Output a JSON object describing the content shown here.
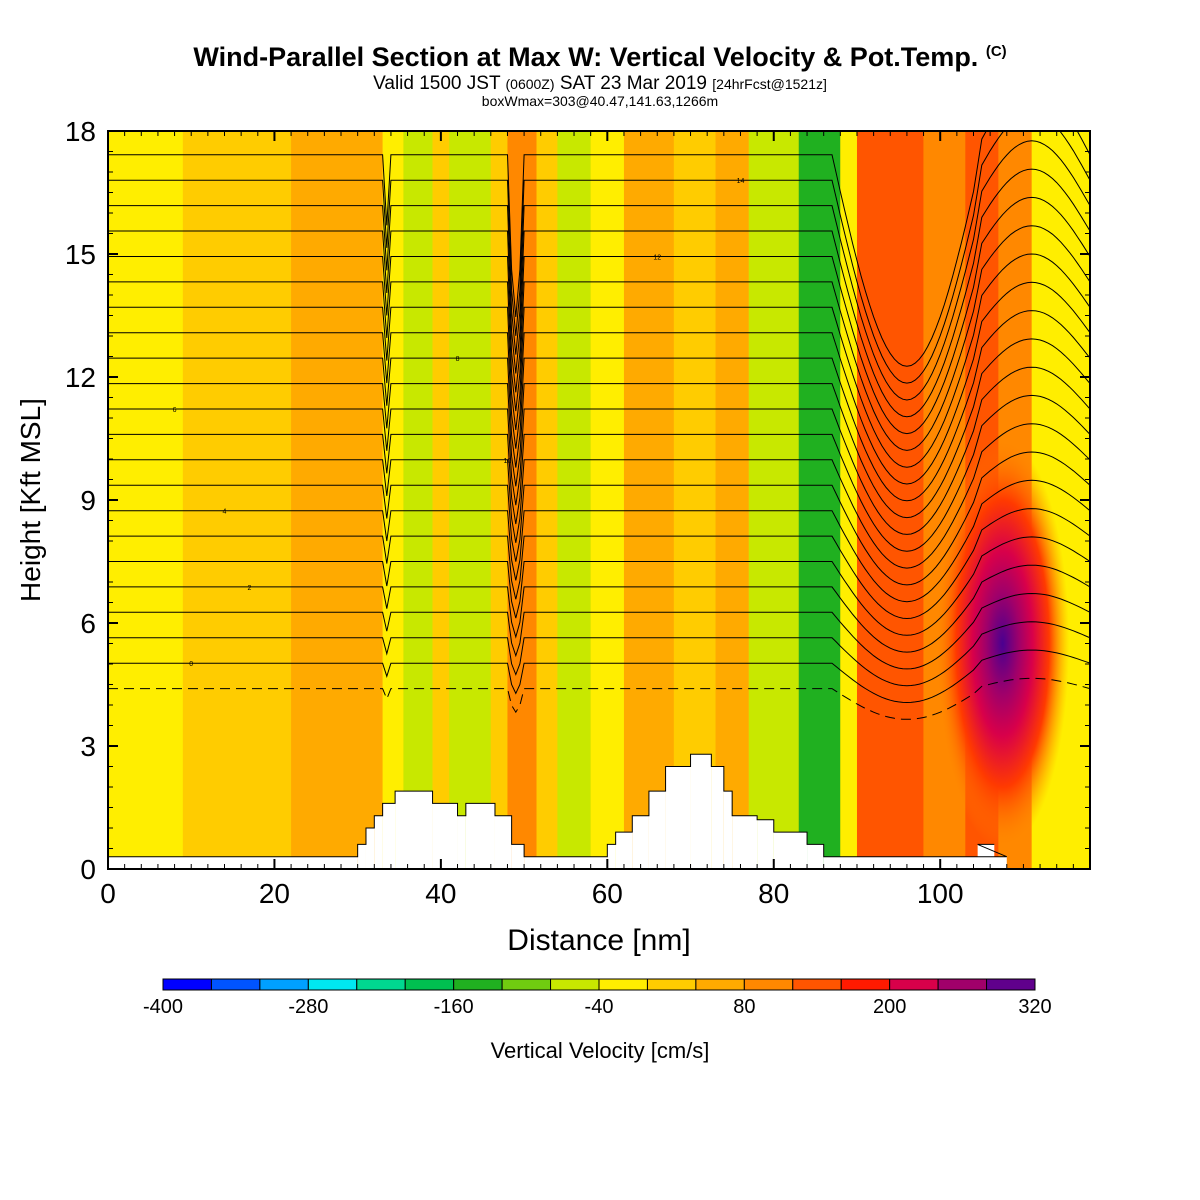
{
  "header": {
    "title": "Wind-Parallel Section at Max W: Vertical Velocity & Pot.Temp.",
    "copyright": "(C)",
    "valid_prefix": "Valid 1500 JST",
    "valid_utc": "(0600Z)",
    "valid_date": "SAT 23 Mar 2019",
    "forecast": "[24hrFcst@1521z]",
    "boxwmax": "boxWmax=303@40.47,141.63,1266m"
  },
  "chart_data": {
    "type": "heatmap",
    "xlabel": "Distance [nm]",
    "ylabel": "Height [Kft MSL]",
    "xlim": [
      0,
      118
    ],
    "ylim": [
      0,
      18
    ],
    "xticks": [
      0,
      20,
      40,
      60,
      80,
      100
    ],
    "yticks": [
      0,
      3,
      6,
      9,
      12,
      15,
      18
    ],
    "colorbar": {
      "label": "Vertical Velocity [cm/s]",
      "min": -400,
      "max": 320,
      "step": 40,
      "tick_labels": [
        -400,
        -280,
        -160,
        -40,
        80,
        200,
        320
      ],
      "colors": [
        "#0000ff",
        "#0054ff",
        "#00a0ff",
        "#00e8f0",
        "#00d890",
        "#00c050",
        "#20b020",
        "#70cc10",
        "#c8e800",
        "#ffee00",
        "#ffcc00",
        "#ffaa00",
        "#ff8800",
        "#ff5500",
        "#ff1a00",
        "#d8004a",
        "#a0006a",
        "#60008c"
      ]
    },
    "vertical_velocity_bands": [
      {
        "x": [
          0,
          9
        ],
        "value": -20
      },
      {
        "x": [
          9,
          22
        ],
        "value": 20
      },
      {
        "x": [
          22,
          33
        ],
        "value": 40
      },
      {
        "x": [
          33,
          35.5
        ],
        "value": -20
      },
      {
        "x": [
          35.5,
          39
        ],
        "value": -60
      },
      {
        "x": [
          39,
          41
        ],
        "value": 20
      },
      {
        "x": [
          41,
          46
        ],
        "value": -80
      },
      {
        "x": [
          46,
          48
        ],
        "value": 0
      },
      {
        "x": [
          48,
          51.5
        ],
        "value": 100
      },
      {
        "x": [
          51.5,
          54
        ],
        "value": 20
      },
      {
        "x": [
          54,
          58
        ],
        "value": -80
      },
      {
        "x": [
          58,
          62
        ],
        "value": -20
      },
      {
        "x": [
          62,
          68
        ],
        "value": 60
      },
      {
        "x": [
          68,
          73
        ],
        "value": 0
      },
      {
        "x": [
          73,
          77
        ],
        "value": 60
      },
      {
        "x": [
          77,
          83
        ],
        "value": -60
      },
      {
        "x": [
          83,
          88
        ],
        "value": -150
      },
      {
        "x": [
          88,
          90
        ],
        "value": -20
      },
      {
        "x": [
          90,
          98
        ],
        "value": 120
      },
      {
        "x": [
          98,
          103
        ],
        "value": 80
      },
      {
        "x": [
          103,
          107
        ],
        "value": 120
      },
      {
        "x": [
          107,
          111
        ],
        "value": 80
      },
      {
        "x": [
          111,
          118
        ],
        "value": -40
      }
    ],
    "updraft_core": {
      "x": 107.5,
      "height_kft": 5.5,
      "max_cm_s": 303
    },
    "terrain": [
      {
        "x": [
          0,
          30
        ],
        "top": 0.3
      },
      {
        "x": [
          30,
          31
        ],
        "top": 0.6
      },
      {
        "x": [
          31,
          32
        ],
        "top": 1.0
      },
      {
        "x": [
          32,
          33
        ],
        "top": 1.3
      },
      {
        "x": [
          33,
          34.5
        ],
        "top": 1.6
      },
      {
        "x": [
          34.5,
          39
        ],
        "top": 1.9
      },
      {
        "x": [
          39,
          42
        ],
        "top": 1.6
      },
      {
        "x": [
          42,
          43
        ],
        "top": 1.3
      },
      {
        "x": [
          43,
          46.5
        ],
        "top": 1.6
      },
      {
        "x": [
          46.5,
          48.5
        ],
        "top": 1.3
      },
      {
        "x": [
          48.5,
          50
        ],
        "top": 0.6
      },
      {
        "x": [
          50,
          60
        ],
        "top": 0.3
      },
      {
        "x": [
          60,
          61
        ],
        "top": 0.6
      },
      {
        "x": [
          61,
          63
        ],
        "top": 0.9
      },
      {
        "x": [
          63,
          65
        ],
        "top": 1.3
      },
      {
        "x": [
          65,
          67
        ],
        "top": 1.9
      },
      {
        "x": [
          67,
          70
        ],
        "top": 2.5
      },
      {
        "x": [
          70,
          72.5
        ],
        "top": 2.8
      },
      {
        "x": [
          72.5,
          74
        ],
        "top": 2.5
      },
      {
        "x": [
          74,
          75
        ],
        "top": 1.9
      },
      {
        "x": [
          75,
          78
        ],
        "top": 1.3
      },
      {
        "x": [
          78,
          80
        ],
        "top": 1.2
      },
      {
        "x": [
          80,
          84
        ],
        "top": 0.9
      },
      {
        "x": [
          84,
          86
        ],
        "top": 0.6
      },
      {
        "x": [
          86,
          108
        ],
        "top": 0.3
      },
      {
        "x": [
          104.5,
          106.5
        ],
        "top": 0.6
      }
    ],
    "theta_labels": [
      "0",
      "2",
      "4",
      "6",
      "8",
      "10",
      "12",
      "14"
    ]
  }
}
